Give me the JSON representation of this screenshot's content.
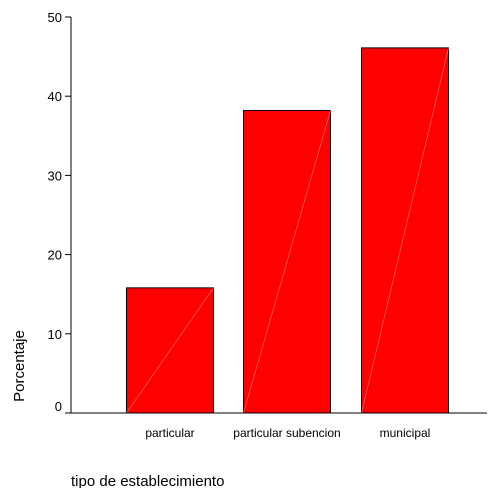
{
  "chart_data": {
    "type": "bar",
    "title": "",
    "xlabel": "tipo de establecimiento",
    "ylabel": "Porcentaje",
    "categories": [
      "particular",
      "particular subencion",
      "municipal"
    ],
    "values": [
      15.8,
      38.2,
      46.1
    ],
    "ylim": [
      0,
      50
    ],
    "yticks": [
      "0",
      "10",
      "20",
      "30",
      "40",
      "50"
    ],
    "grid": false,
    "legend": "none",
    "bar_color": "#ff0000",
    "bar_outline": "#000000"
  }
}
